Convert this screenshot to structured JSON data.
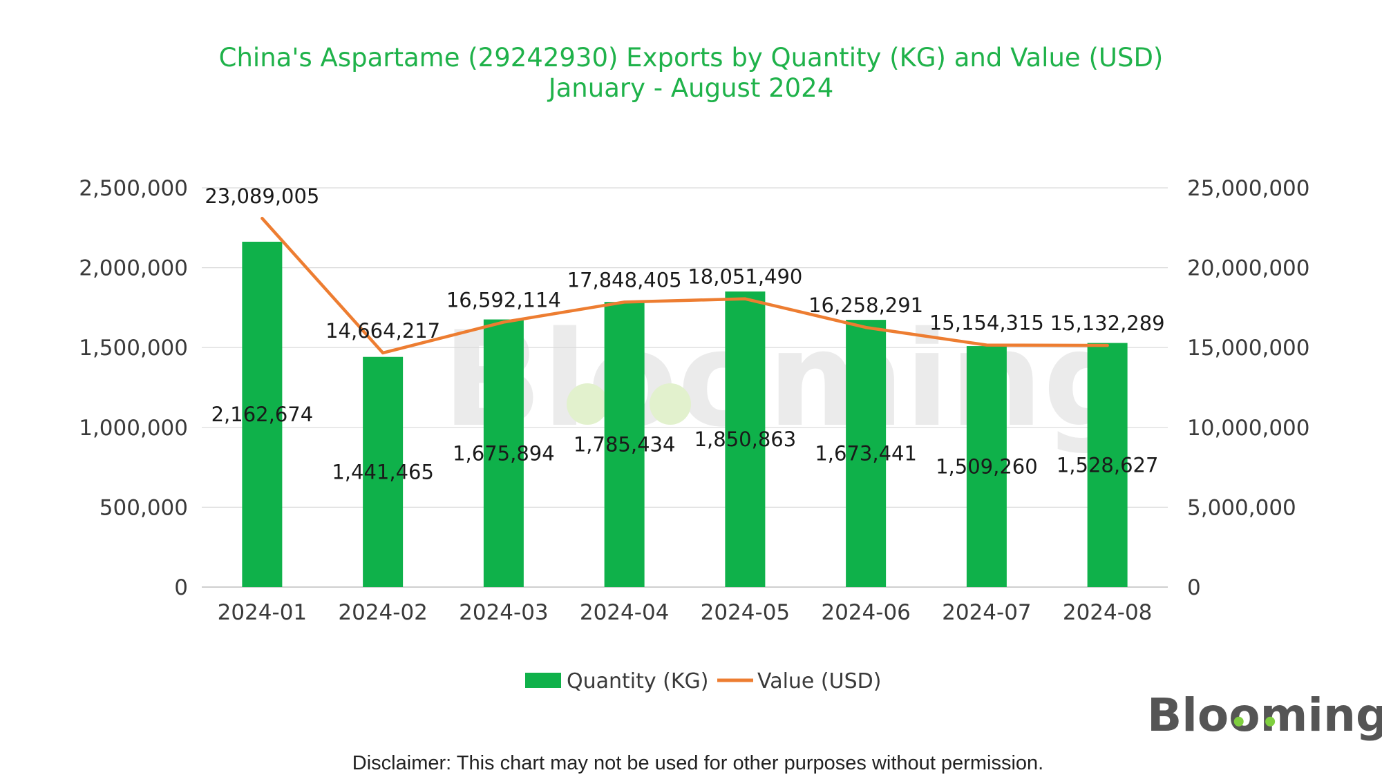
{
  "chart_data": {
    "type": "bar",
    "title": "China's Aspartame (29242930) Exports by Quantity (KG) and Value (USD)",
    "subtitle": "January - August 2024",
    "categories": [
      "2024-01",
      "2024-02",
      "2024-03",
      "2024-04",
      "2024-05",
      "2024-06",
      "2024-07",
      "2024-08"
    ],
    "series": [
      {
        "name": "Quantity (KG)",
        "type": "bar",
        "axis": "left",
        "color": "#0fb14a",
        "values": [
          2162674,
          1441465,
          1675894,
          1785434,
          1850863,
          1673441,
          1509260,
          1528627
        ],
        "labels": [
          "2,162,674",
          "1,441,465",
          "1,675,894",
          "1,785,434",
          "1,850,863",
          "1,673,441",
          "1,509,260",
          "1,528,627"
        ]
      },
      {
        "name": "Value (USD)",
        "type": "line",
        "axis": "right",
        "color": "#ed7d31",
        "values": [
          23089005,
          14664217,
          16592114,
          17848405,
          18051490,
          16258291,
          15154315,
          15132289
        ],
        "labels": [
          "23,089,005",
          "14,664,217",
          "16,592,114",
          "17,848,405",
          "18,051,490",
          "16,258,291",
          "15,154,315",
          "15,132,289"
        ]
      }
    ],
    "y_left": {
      "min": 0,
      "max": 2500000,
      "ticks": [
        "0",
        "500,000",
        "1,000,000",
        "1,500,000",
        "2,000,000",
        "2,500,000"
      ]
    },
    "y_right": {
      "min": 0,
      "max": 25000000,
      "ticks": [
        "0",
        "5,000,000",
        "10,000,000",
        "15,000,000",
        "20,000,000",
        "25,000,000"
      ]
    },
    "grid": true,
    "legend": "bottom-center",
    "xlabel": "",
    "ylabel": ""
  },
  "legend": {
    "quantity": "Quantity (KG)",
    "value": "Value (USD)"
  },
  "watermark": "Blooming",
  "logo": "Blooming",
  "disclaimer": "Disclaimer: This chart may not be used for other purposes without permission.",
  "colors": {
    "title": "#1fb24a",
    "bar": "#0fb14a",
    "line": "#ed7d31",
    "grid": "#d9d9d9",
    "logo": "#555555"
  }
}
